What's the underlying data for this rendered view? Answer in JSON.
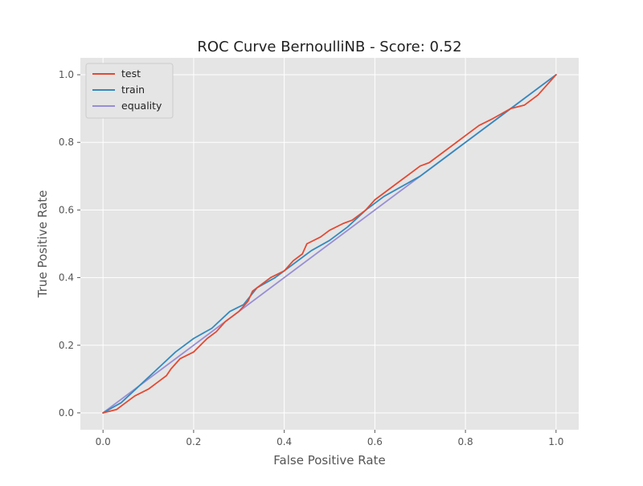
{
  "chart_data": {
    "type": "line",
    "title": "ROC Curve BernoulliNB - Score: 0.52",
    "xlabel": "False Positive Rate",
    "ylabel": "True Positive Rate",
    "xlim": [
      -0.05,
      1.05
    ],
    "ylim": [
      -0.05,
      1.05
    ],
    "xticks": [
      "0.0",
      "0.2",
      "0.4",
      "0.6",
      "0.8",
      "1.0"
    ],
    "yticks": [
      "0.0",
      "0.2",
      "0.4",
      "0.6",
      "0.8",
      "1.0"
    ],
    "grid": true,
    "legend_position": "upper-left",
    "series": [
      {
        "name": "test",
        "color": "#E24A33",
        "points": [
          [
            0.0,
            0.0
          ],
          [
            0.03,
            0.01
          ],
          [
            0.05,
            0.03
          ],
          [
            0.07,
            0.05
          ],
          [
            0.1,
            0.07
          ],
          [
            0.12,
            0.09
          ],
          [
            0.14,
            0.11
          ],
          [
            0.15,
            0.13
          ],
          [
            0.17,
            0.16
          ],
          [
            0.2,
            0.18
          ],
          [
            0.23,
            0.22
          ],
          [
            0.25,
            0.24
          ],
          [
            0.27,
            0.27
          ],
          [
            0.3,
            0.3
          ],
          [
            0.32,
            0.33
          ],
          [
            0.33,
            0.36
          ],
          [
            0.35,
            0.38
          ],
          [
            0.37,
            0.4
          ],
          [
            0.4,
            0.42
          ],
          [
            0.42,
            0.45
          ],
          [
            0.44,
            0.47
          ],
          [
            0.45,
            0.5
          ],
          [
            0.48,
            0.52
          ],
          [
            0.5,
            0.54
          ],
          [
            0.53,
            0.56
          ],
          [
            0.55,
            0.57
          ],
          [
            0.58,
            0.6
          ],
          [
            0.6,
            0.63
          ],
          [
            0.63,
            0.66
          ],
          [
            0.66,
            0.69
          ],
          [
            0.7,
            0.73
          ],
          [
            0.72,
            0.74
          ],
          [
            0.75,
            0.77
          ],
          [
            0.78,
            0.8
          ],
          [
            0.8,
            0.82
          ],
          [
            0.83,
            0.85
          ],
          [
            0.86,
            0.87
          ],
          [
            0.9,
            0.9
          ],
          [
            0.93,
            0.91
          ],
          [
            0.96,
            0.94
          ],
          [
            0.98,
            0.97
          ],
          [
            1.0,
            1.0
          ]
        ]
      },
      {
        "name": "train",
        "color": "#348ABD",
        "points": [
          [
            0.0,
            0.0
          ],
          [
            0.04,
            0.03
          ],
          [
            0.08,
            0.08
          ],
          [
            0.12,
            0.13
          ],
          [
            0.16,
            0.18
          ],
          [
            0.2,
            0.22
          ],
          [
            0.24,
            0.25
          ],
          [
            0.28,
            0.3
          ],
          [
            0.31,
            0.32
          ],
          [
            0.34,
            0.37
          ],
          [
            0.38,
            0.4
          ],
          [
            0.42,
            0.44
          ],
          [
            0.46,
            0.48
          ],
          [
            0.5,
            0.51
          ],
          [
            0.54,
            0.55
          ],
          [
            0.58,
            0.6
          ],
          [
            0.62,
            0.64
          ],
          [
            0.66,
            0.67
          ],
          [
            0.7,
            0.7
          ],
          [
            0.74,
            0.74
          ],
          [
            0.78,
            0.78
          ],
          [
            0.82,
            0.82
          ],
          [
            0.86,
            0.86
          ],
          [
            0.9,
            0.9
          ],
          [
            0.94,
            0.94
          ],
          [
            0.97,
            0.97
          ],
          [
            1.0,
            1.0
          ]
        ]
      },
      {
        "name": "equality",
        "color": "#988ED5",
        "points": [
          [
            0.0,
            0.0
          ],
          [
            1.0,
            1.0
          ]
        ]
      }
    ]
  }
}
